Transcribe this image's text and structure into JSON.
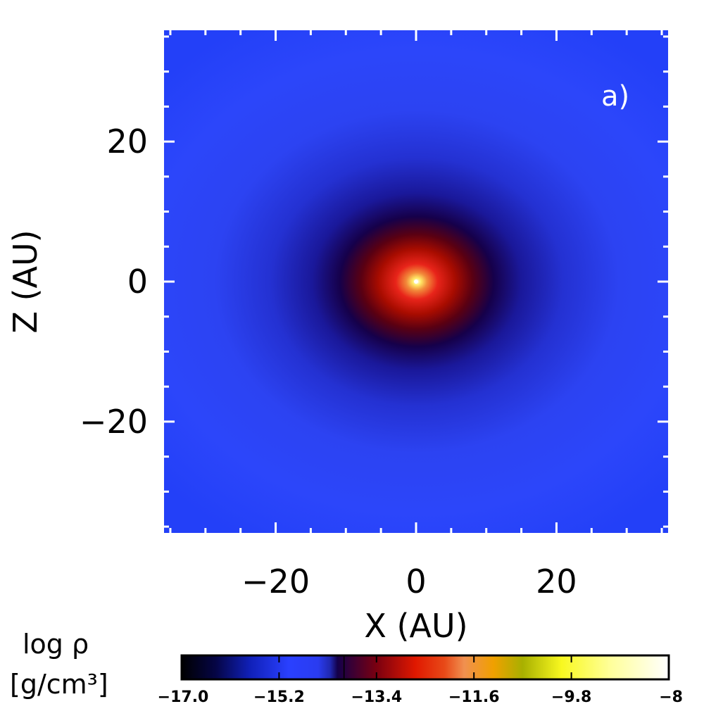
{
  "chart_data": {
    "type": "heatmap",
    "panel_label": "a)",
    "xlabel": "X (AU)",
    "ylabel": "Z (AU)",
    "xlim": [
      -36,
      36
    ],
    "ylim": [
      -36,
      36
    ],
    "x_ticks": [
      -20,
      0,
      20
    ],
    "y_ticks": [
      -20,
      0,
      20
    ],
    "x_tick_labels": [
      "−20",
      "0",
      "20"
    ],
    "y_tick_labels": [
      "−20",
      "0",
      "20"
    ],
    "x_minor_step": 5,
    "y_minor_step": 5,
    "density_peak": {
      "x": 0,
      "z": 0
    },
    "colorbar": {
      "title_line1": "log ρ",
      "title_line2": "[g/cm³]",
      "range": [
        -17.0,
        -8
      ],
      "tick_values": [
        -17.0,
        -15.2,
        -13.4,
        -11.6,
        -9.8,
        -8
      ],
      "tick_labels": [
        "−17.0",
        "−15.2",
        "−13.4",
        "−11.6",
        "−9.8",
        "−8"
      ],
      "colormap": [
        "#000000",
        "#0a0a6e",
        "#1a3cff",
        "#3350ff",
        "#1a1aa8",
        "#14003a",
        "#800000",
        "#e02000",
        "#f08040",
        "#f0a000",
        "#a0b000",
        "#ffff40",
        "#ffff99",
        "#ffffff"
      ]
    }
  }
}
